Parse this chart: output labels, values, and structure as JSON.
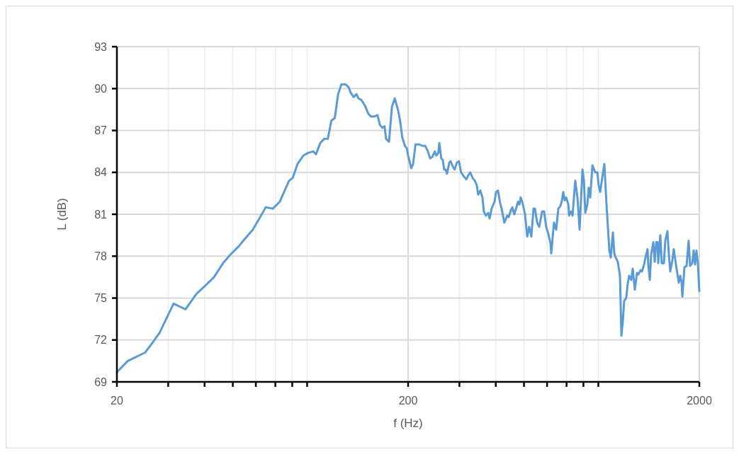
{
  "chart_data": {
    "type": "line",
    "xlabel": "f (Hz)",
    "ylabel": "L (dB)",
    "log": "x",
    "grid": true,
    "marker": "none",
    "line_style": "solid",
    "xlim": [
      20,
      2000
    ],
    "ylim": [
      69,
      93
    ],
    "xticks": [
      20,
      {
        "value": 30,
        "label": null
      },
      {
        "value": 40,
        "label": null
      },
      {
        "value": 50,
        "label": null
      },
      {
        "value": 60,
        "label": null
      },
      {
        "value": 70,
        "label": null
      },
      {
        "value": 80,
        "label": null
      },
      {
        "value": 90,
        "label": null
      },
      200,
      {
        "value": 300,
        "label": null
      },
      {
        "value": 400,
        "label": null
      },
      {
        "value": 500,
        "label": null
      },
      {
        "value": 600,
        "label": null
      },
      {
        "value": 700,
        "label": null
      },
      {
        "value": 800,
        "label": null
      },
      {
        "value": 900,
        "label": null
      },
      2000
    ],
    "yticks": [
      69,
      72,
      75,
      78,
      81,
      84,
      87,
      90,
      93
    ],
    "x": [
      20,
      21.8,
      25.0,
      26.5,
      28.0,
      31.3,
      34.4,
      37.5,
      40.3,
      43.1,
      46.3,
      49.0,
      52.4,
      54.8,
      58.6,
      64.9,
      68.6,
      72.5,
      78.0,
      80.3,
      83.4,
      87.3,
      90.8,
      94.4,
      96.6,
      99.8,
      103,
      106,
      109,
      112,
      115,
      118,
      122,
      125,
      127,
      130,
      133,
      135,
      138,
      142,
      146,
      149,
      153,
      157,
      160,
      163,
      166,
      168,
      172,
      176,
      180,
      185,
      188,
      191,
      195,
      198,
      200,
      205,
      208,
      212,
      219,
      224,
      229,
      234,
      238,
      242,
      247,
      250,
      254,
      256,
      260,
      263,
      266,
      269,
      272,
      277,
      280,
      285,
      289,
      294,
      299,
      304,
      311,
      317,
      322,
      327,
      333,
      339,
      344,
      348,
      354,
      360,
      364,
      370,
      377,
      381,
      387,
      396,
      401,
      407,
      414,
      419,
      428,
      438,
      443,
      451,
      456,
      463,
      471,
      477,
      482,
      487,
      493,
      504,
      513,
      521,
      530,
      539,
      545,
      555,
      564,
      577,
      586,
      596,
      606,
      617,
      620,
      634,
      645,
      656,
      667,
      675,
      682,
      690,
      698,
      710,
      714,
      725,
      734,
      742,
      750,
      763,
      776,
      794,
      803,
      812,
      825,
      834,
      844,
      859,
      878,
      893,
      902,
      913,
      928,
      944,
      960,
      982,
      993,
      1010,
      1021,
      1032,
      1050,
      1068,
      1080,
      1092,
      1104,
      1122,
      1135,
      1148,
      1168,
      1181,
      1201,
      1222,
      1236,
      1257,
      1271,
      1292,
      1306,
      1328,
      1336,
      1352,
      1366,
      1390,
      1406,
      1422,
      1438,
      1445,
      1469,
      1486,
      1511,
      1528,
      1554,
      1571,
      1589,
      1616,
      1634,
      1652,
      1671,
      1700,
      1720,
      1739,
      1749,
      1778,
      1808,
      1838,
      1859,
      1891,
      1912,
      1933,
      1955,
      1977,
      2000
    ],
    "series": [
      {
        "color": "#5b9bd5",
        "values": [
          69.7,
          70.5,
          71.1,
          71.8,
          72.5,
          74.6,
          74.2,
          75.3,
          75.9,
          76.5,
          77.5,
          78.1,
          78.7,
          79.2,
          79.9,
          81.5,
          81.4,
          81.9,
          83.4,
          83.6,
          84.6,
          85.2,
          85.4,
          85.5,
          85.3,
          86.1,
          86.4,
          86.4,
          87.7,
          87.9,
          89.6,
          90.3,
          90.3,
          90.1,
          89.7,
          89.4,
          89.6,
          89.3,
          89.2,
          88.8,
          88.2,
          88.0,
          88.0,
          88.1,
          87.4,
          87.2,
          87.3,
          86.4,
          86.2,
          88.7,
          89.3,
          88.4,
          87.6,
          86.5,
          85.9,
          85.7,
          85.2,
          84.3,
          84.6,
          86.0,
          86.0,
          85.9,
          85.9,
          85.5,
          85.0,
          85.1,
          85.5,
          85.2,
          85.4,
          86.1,
          85.0,
          84.9,
          84.2,
          84.2,
          83.9,
          84.7,
          84.8,
          84.4,
          84.2,
          84.7,
          84.8,
          84.0,
          83.7,
          83.5,
          83.8,
          84.0,
          83.6,
          83.4,
          83.1,
          82.4,
          82.7,
          82.2,
          81.2,
          80.9,
          81.1,
          80.7,
          81.4,
          81.9,
          82.6,
          82.7,
          81.8,
          81.4,
          80.4,
          80.9,
          80.8,
          81.3,
          81.5,
          81.0,
          81.5,
          81.9,
          81.7,
          82.2,
          81.9,
          81.0,
          79.4,
          80.1,
          79.4,
          81.4,
          81.4,
          80.4,
          80.1,
          81.2,
          81.2,
          80.1,
          79.6,
          78.9,
          78.2,
          80.4,
          79.9,
          81.4,
          81.6,
          82.0,
          82.6,
          82.0,
          82.2,
          81.7,
          80.9,
          81.2,
          80.9,
          82.2,
          83.4,
          82.2,
          79.9,
          84.2,
          83.4,
          81.1,
          81.7,
          82.9,
          82.2,
          84.5,
          84.0,
          84.0,
          83.1,
          82.6,
          83.6,
          84.6,
          81.7,
          78.4,
          77.9,
          79.7,
          78.2,
          77.9,
          77.6,
          76.6,
          72.3,
          73.3,
          74.8,
          75.0,
          76.0,
          76.6,
          76.3,
          77.1,
          75.6,
          76.8,
          76.7,
          77.0,
          76.9,
          77.4,
          77.9,
          78.5,
          77.4,
          76.3,
          78.1,
          79.0,
          77.6,
          79.0,
          79.0,
          77.5,
          79.5,
          77.5,
          77.5,
          79.1,
          79.8,
          78.2,
          76.9,
          77.7,
          78.5,
          77.8,
          77.1,
          76.1,
          76.6,
          76.1,
          75.1,
          77.2,
          77.3,
          79.1,
          77.3,
          77.5,
          78.4,
          77.4,
          78.4,
          77.5,
          75.5
        ]
      }
    ]
  }
}
